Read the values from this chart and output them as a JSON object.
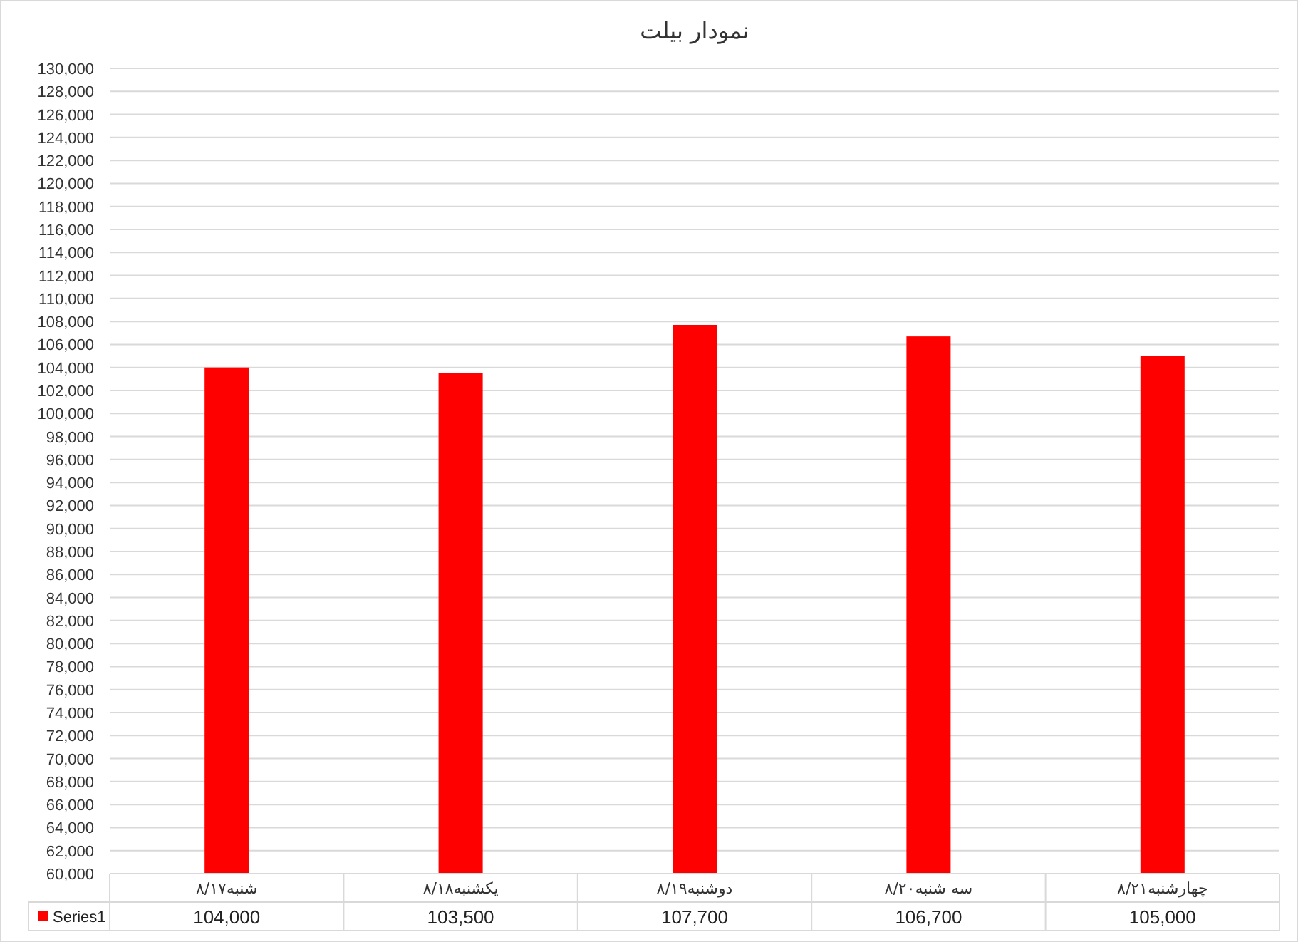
{
  "chart_data": {
    "type": "bar",
    "title": "نمودار بیلت",
    "categories": [
      "شنبه۸/۱۷",
      "یکشنبه۸/۱۸",
      "دوشنبه۸/۱۹",
      "سه شنبه۸/۲۰",
      "چهارشنبه۸/۲۱"
    ],
    "series": [
      {
        "name": "Series1",
        "color": "#ff0000",
        "values": [
          104000,
          103500,
          107700,
          106700,
          105000
        ],
        "value_labels": [
          "104,000",
          "103,500",
          "107,700",
          "106,700",
          "105,000"
        ]
      }
    ],
    "ylim": [
      60000,
      130000
    ],
    "yticks": [
      {
        "value": 60000,
        "label": "60,000"
      },
      {
        "value": 62000,
        "label": "62,000"
      },
      {
        "value": 64000,
        "label": "64,000"
      },
      {
        "value": 66000,
        "label": "66,000"
      },
      {
        "value": 68000,
        "label": "68,000"
      },
      {
        "value": 70000,
        "label": "70,000"
      },
      {
        "value": 72000,
        "label": "72,000"
      },
      {
        "value": 74000,
        "label": "74,000"
      },
      {
        "value": 76000,
        "label": "76,000"
      },
      {
        "value": 78000,
        "label": "78,000"
      },
      {
        "value": 80000,
        "label": "80,000"
      },
      {
        "value": 82000,
        "label": "82,000"
      },
      {
        "value": 84000,
        "label": "84,000"
      },
      {
        "value": 86000,
        "label": "86,000"
      },
      {
        "value": 88000,
        "label": "88,000"
      },
      {
        "value": 90000,
        "label": "90,000"
      },
      {
        "value": 92000,
        "label": "92,000"
      },
      {
        "value": 94000,
        "label": "94,000"
      },
      {
        "value": 96000,
        "label": "96,000"
      },
      {
        "value": 98000,
        "label": "98,000"
      },
      {
        "value": 100000,
        "label": "100,000"
      },
      {
        "value": 102000,
        "label": "102,000"
      },
      {
        "value": 104000,
        "label": "104,000"
      },
      {
        "value": 106000,
        "label": "106,000"
      },
      {
        "value": 108000,
        "label": "108,000"
      },
      {
        "value": 110000,
        "label": "110,000"
      },
      {
        "value": 112000,
        "label": "112,000"
      },
      {
        "value": 114000,
        "label": "114,000"
      },
      {
        "value": 116000,
        "label": "116,000"
      },
      {
        "value": 118000,
        "label": "118,000"
      },
      {
        "value": 120000,
        "label": "120,000"
      },
      {
        "value": 122000,
        "label": "122,000"
      },
      {
        "value": 124000,
        "label": "124,000"
      },
      {
        "value": 126000,
        "label": "126,000"
      },
      {
        "value": 128000,
        "label": "128,000"
      },
      {
        "value": 130000,
        "label": "130,000"
      }
    ],
    "grid": "y",
    "legend": "bottom"
  }
}
